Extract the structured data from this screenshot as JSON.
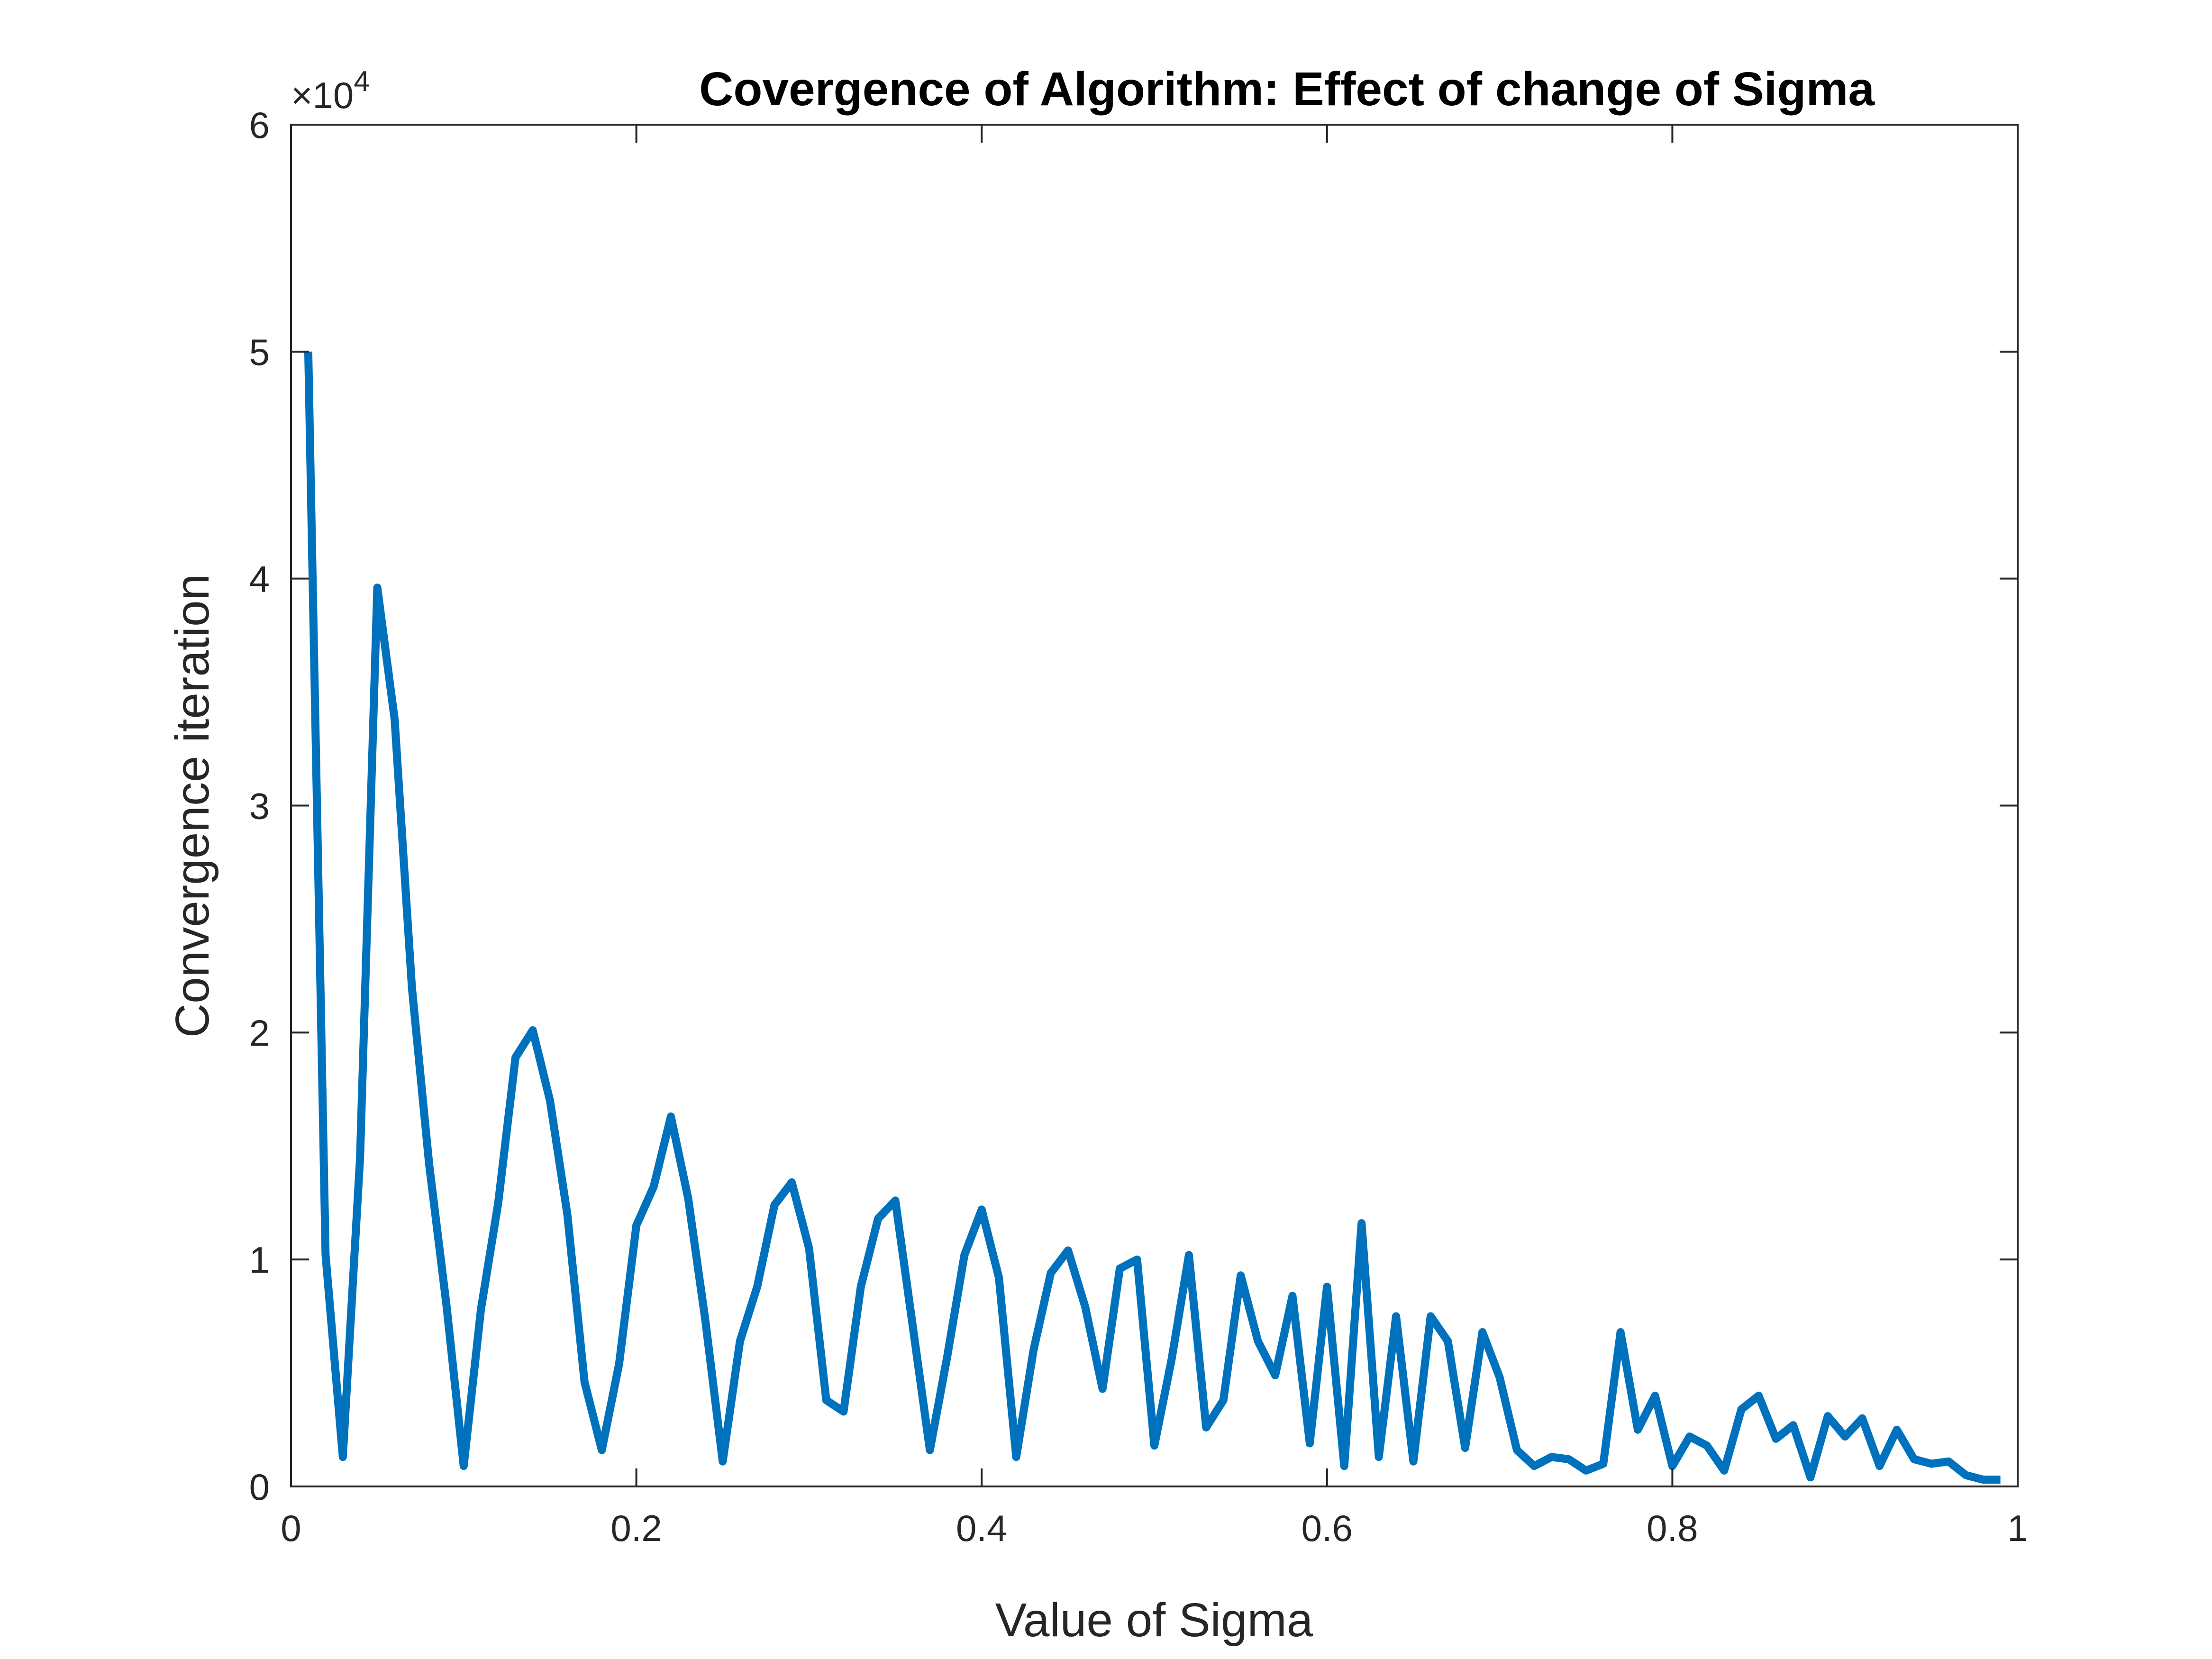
{
  "chart_data": {
    "type": "line",
    "title": "Covergence of Algorithm: Effect of change of Sigma",
    "xlabel": "Value of Sigma",
    "ylabel": "Convergence iteration",
    "xlim": [
      0,
      1
    ],
    "ylim": [
      0,
      60000
    ],
    "y_exponent_label": {
      "prefix": "×10",
      "exponent": "4"
    },
    "x_ticks": [
      0,
      0.2,
      0.4,
      0.6,
      0.8,
      1
    ],
    "x_tick_labels": [
      "0",
      "0.2",
      "0.4",
      "0.6",
      "0.8",
      "1"
    ],
    "y_ticks": [
      0,
      10000,
      20000,
      30000,
      40000,
      50000,
      60000
    ],
    "y_tick_labels": [
      "0",
      "1",
      "2",
      "3",
      "4",
      "5",
      "6"
    ],
    "grid": false,
    "box": true,
    "line_color": "#0072BD",
    "axis_color": "#262626",
    "x": [
      0.01,
      0.02,
      0.03,
      0.04,
      0.05,
      0.06,
      0.07,
      0.08,
      0.09,
      0.1,
      0.11,
      0.12,
      0.13,
      0.14,
      0.15,
      0.16,
      0.17,
      0.18,
      0.19,
      0.2,
      0.21,
      0.22,
      0.23,
      0.24,
      0.25,
      0.26,
      0.27,
      0.28,
      0.29,
      0.3,
      0.31,
      0.32,
      0.33,
      0.34,
      0.35,
      0.36,
      0.37,
      0.38,
      0.39,
      0.4,
      0.41,
      0.42,
      0.43,
      0.44,
      0.45,
      0.46,
      0.47,
      0.48,
      0.49,
      0.5,
      0.51,
      0.52,
      0.53,
      0.54,
      0.55,
      0.56,
      0.57,
      0.58,
      0.59,
      0.6,
      0.61,
      0.62,
      0.63,
      0.64,
      0.65,
      0.66,
      0.67,
      0.68,
      0.69,
      0.7,
      0.71,
      0.72,
      0.73,
      0.74,
      0.75,
      0.76,
      0.77,
      0.78,
      0.79,
      0.8,
      0.81,
      0.82,
      0.83,
      0.84,
      0.85,
      0.86,
      0.87,
      0.88,
      0.89,
      0.9,
      0.91,
      0.92,
      0.93,
      0.94,
      0.95,
      0.96,
      0.97,
      0.98,
      0.99
    ],
    "y": [
      50000,
      10200,
      1300,
      14500,
      39600,
      33800,
      22000,
      14200,
      8000,
      900,
      7800,
      12500,
      18900,
      20100,
      17000,
      12000,
      4600,
      1600,
      5400,
      11500,
      13200,
      16300,
      12700,
      7300,
      1100,
      6400,
      8800,
      12400,
      13400,
      10500,
      3800,
      3300,
      8800,
      11800,
      12600,
      7100,
      1600,
      5700,
      10200,
      12200,
      9200,
      1300,
      6000,
      9400,
      10400,
      7900,
      4300,
      9600,
      10000,
      1800,
      5600,
      10200,
      2600,
      3800,
      9300,
      6400,
      4900,
      8400,
      1900,
      8800,
      900,
      11600,
      1300,
      7500,
      1100,
      7500,
      6400,
      1700,
      6800,
      4800,
      1600,
      900,
      1300,
      1200,
      700,
      1000,
      6800,
      2500,
      4000,
      900,
      2200,
      1800,
      700,
      3400,
      4000,
      2100,
      2700,
      400,
      3100,
      2200,
      3000,
      900,
      2500,
      1200,
      1000,
      1100,
      500,
      300,
      300
    ]
  }
}
